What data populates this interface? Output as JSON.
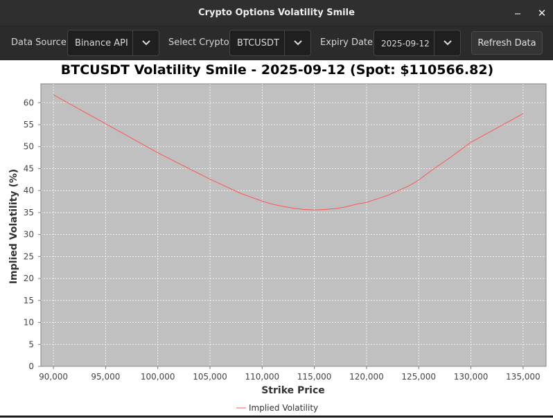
{
  "window": {
    "title": "Crypto Options Volatility Smile",
    "minimize_glyph": "‒",
    "close_glyph": "✕"
  },
  "toolbar": {
    "data_source_label": "Data Source:",
    "data_source_value": "Binance API",
    "crypto_label": "Select Crypto:",
    "crypto_value": "BTCUSDT",
    "expiry_label": "Expiry Date:",
    "expiry_value": "2025-09-12",
    "refresh_label": "Refresh Data",
    "dropdown_icon": "chevron-down-icon"
  },
  "chart_data": {
    "type": "line",
    "title": "BTCUSDT Volatility Smile - 2025-09-12 (Spot: $110566.82)",
    "xlabel": "Strike Price",
    "ylabel": "Implied Volatility (%)",
    "xlim": [
      88800,
      137200
    ],
    "ylim": [
      0,
      64.3
    ],
    "x_ticks": [
      90000,
      95000,
      100000,
      105000,
      110000,
      115000,
      120000,
      125000,
      130000,
      135000
    ],
    "x_tick_labels": [
      "90,000",
      "95,000",
      "100,000",
      "105,000",
      "110,000",
      "115,000",
      "120,000",
      "125,000",
      "130,000",
      "135,000"
    ],
    "y_ticks": [
      0,
      5,
      10,
      15,
      20,
      25,
      30,
      35,
      40,
      45,
      50,
      55,
      60
    ],
    "y_tick_labels": [
      "0",
      "5",
      "10",
      "15",
      "20",
      "25",
      "30",
      "35",
      "40",
      "45",
      "50",
      "55",
      "60"
    ],
    "grid": true,
    "legend": "bottom-center",
    "plot_background": "#c0c0c0",
    "series": [
      {
        "name": "Implied Volatility",
        "color": "#ff5555",
        "x": [
          90000,
          95000,
          100000,
          105000,
          108000,
          110000,
          111000,
          112000,
          113000,
          114000,
          115000,
          116000,
          117000,
          118000,
          119000,
          120000,
          122000,
          124000,
          125000,
          126000,
          128000,
          130000,
          135000
        ],
        "y": [
          61.8,
          55.2,
          48.6,
          42.6,
          39.3,
          37.6,
          36.9,
          36.4,
          36.0,
          35.7,
          35.6,
          35.7,
          35.9,
          36.3,
          36.9,
          37.3,
          38.9,
          41.0,
          42.4,
          44.2,
          47.5,
          51.0,
          57.5
        ]
      }
    ]
  }
}
